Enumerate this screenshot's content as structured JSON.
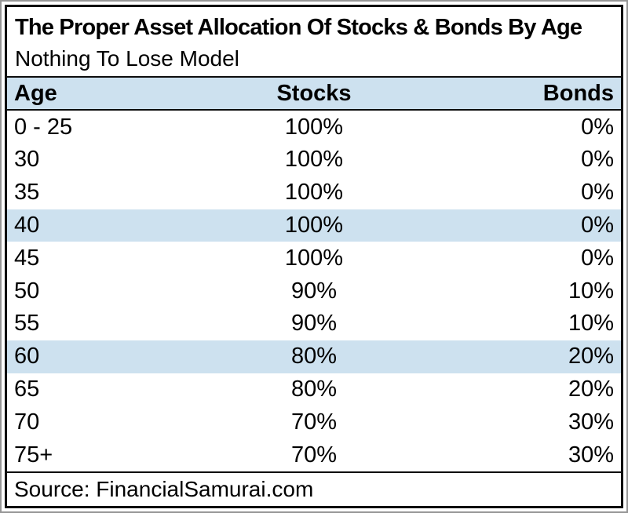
{
  "title": "The Proper Asset Allocation Of Stocks & Bonds By Age",
  "subtitle": "Nothing To Lose Model",
  "table": {
    "columns": [
      "Age",
      "Stocks",
      "Bonds"
    ],
    "rows": [
      {
        "age": "0 - 25",
        "stocks": "100%",
        "bonds": "0%",
        "highlighted": false
      },
      {
        "age": "30",
        "stocks": "100%",
        "bonds": "0%",
        "highlighted": false
      },
      {
        "age": "35",
        "stocks": "100%",
        "bonds": "0%",
        "highlighted": false
      },
      {
        "age": "40",
        "stocks": "100%",
        "bonds": "0%",
        "highlighted": true
      },
      {
        "age": "45",
        "stocks": "100%",
        "bonds": "0%",
        "highlighted": false
      },
      {
        "age": "50",
        "stocks": "90%",
        "bonds": "10%",
        "highlighted": false
      },
      {
        "age": "55",
        "stocks": "90%",
        "bonds": "10%",
        "highlighted": false
      },
      {
        "age": "60",
        "stocks": "80%",
        "bonds": "20%",
        "highlighted": true
      },
      {
        "age": "65",
        "stocks": "80%",
        "bonds": "20%",
        "highlighted": false
      },
      {
        "age": "70",
        "stocks": "70%",
        "bonds": "30%",
        "highlighted": false
      },
      {
        "age": "75+",
        "stocks": "70%",
        "bonds": "30%",
        "highlighted": false
      }
    ]
  },
  "source": "Source: FinancialSamurai.com",
  "colors": {
    "header_bg": "#cde1ef",
    "highlight_row_bg": "#cde1ef",
    "border": "#0d0d0d",
    "text": "#000000"
  },
  "chart_data": {
    "type": "table",
    "title": "The Proper Asset Allocation Of Stocks & Bonds By Age",
    "subtitle": "Nothing To Lose Model",
    "categories": [
      "0 - 25",
      "30",
      "35",
      "40",
      "45",
      "50",
      "55",
      "60",
      "65",
      "70",
      "75+"
    ],
    "series": [
      {
        "name": "Stocks",
        "values": [
          100,
          100,
          100,
          100,
          100,
          90,
          90,
          80,
          80,
          70,
          70
        ],
        "unit": "%"
      },
      {
        "name": "Bonds",
        "values": [
          0,
          0,
          0,
          0,
          0,
          10,
          10,
          20,
          20,
          30,
          30
        ],
        "unit": "%"
      }
    ],
    "highlighted_categories": [
      "40",
      "60"
    ],
    "source": "Source: FinancialSamurai.com"
  }
}
